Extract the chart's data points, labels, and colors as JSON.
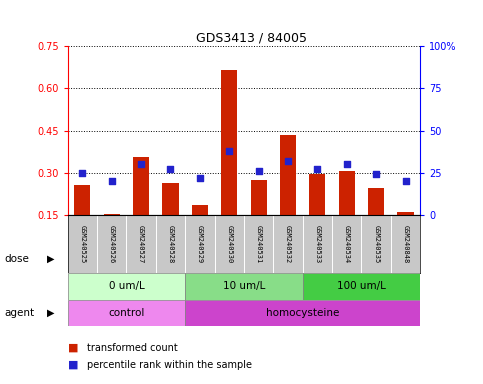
{
  "title": "GDS3413 / 84005",
  "samples": [
    "GSM240525",
    "GSM240526",
    "GSM240527",
    "GSM240528",
    "GSM240529",
    "GSM240530",
    "GSM240531",
    "GSM240532",
    "GSM240533",
    "GSM240534",
    "GSM240535",
    "GSM240848"
  ],
  "red_values": [
    0.255,
    0.155,
    0.355,
    0.265,
    0.185,
    0.665,
    0.275,
    0.435,
    0.295,
    0.305,
    0.245,
    0.16
  ],
  "blue_pct": [
    25,
    20,
    30,
    27,
    22,
    38,
    26,
    32,
    27,
    30,
    24,
    20
  ],
  "ylim_left": [
    0.15,
    0.75
  ],
  "yticks_left": [
    0.15,
    0.3,
    0.45,
    0.6,
    0.75
  ],
  "ytick_labels_left": [
    "0.15",
    "0.30",
    "0.45",
    "0.60",
    "0.75"
  ],
  "ylim_right": [
    0,
    100
  ],
  "yticks_right": [
    0,
    25,
    50,
    75,
    100
  ],
  "ytick_labels_right": [
    "0",
    "25",
    "50",
    "75",
    "100%"
  ],
  "dose_groups": [
    {
      "label": "0 um/L",
      "start": 0,
      "end": 4,
      "color": "#ccffcc"
    },
    {
      "label": "10 um/L",
      "start": 4,
      "end": 8,
      "color": "#88dd88"
    },
    {
      "label": "100 um/L",
      "start": 8,
      "end": 12,
      "color": "#44cc44"
    }
  ],
  "agent_groups": [
    {
      "label": "control",
      "start": 0,
      "end": 4,
      "color": "#ee88ee"
    },
    {
      "label": "homocysteine",
      "start": 4,
      "end": 12,
      "color": "#cc44cc"
    }
  ],
  "bar_color": "#cc2200",
  "dot_color": "#2222cc",
  "sample_bg": "#c8c8c8",
  "fig_width": 4.83,
  "fig_height": 3.84
}
